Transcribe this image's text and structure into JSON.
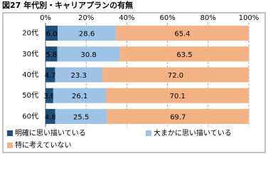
{
  "chart_data": {
    "type": "stacked-bar-horizontal",
    "title": "図27 年代別・キャリアプランの有無",
    "categories": [
      "20代",
      "30代",
      "40代",
      "50代",
      "60代"
    ],
    "series": [
      {
        "name": "明確に思い描いている",
        "color": "#1f4e79",
        "values": [
          6.0,
          5.8,
          4.7,
          3.8,
          4.8
        ],
        "value_labels": [
          "6.0",
          "5.8",
          "4.7",
          "3.8",
          "4.8"
        ]
      },
      {
        "name": "大まかに思い描いている",
        "color": "#9dc3e6",
        "values": [
          28.6,
          30.8,
          23.3,
          26.1,
          25.5
        ],
        "value_labels": [
          "28.6",
          "30.8",
          "23.3",
          "26.1",
          "25.5"
        ]
      },
      {
        "name": "特に考えていない",
        "color": "#f4b183",
        "values": [
          65.4,
          63.5,
          72.0,
          70.1,
          69.7
        ],
        "value_labels": [
          "65.4",
          "63.5",
          "72.0",
          "70.1",
          "69.7"
        ]
      }
    ],
    "xlim": [
      0,
      100
    ],
    "xticks": [
      {
        "value": 0,
        "label": "0%"
      },
      {
        "value": 20,
        "label": "20%"
      },
      {
        "value": 40,
        "label": "40%"
      },
      {
        "value": 60,
        "label": "60%"
      },
      {
        "value": 80,
        "label": "80%"
      },
      {
        "value": 100,
        "label": "100%"
      }
    ],
    "grid": true
  }
}
